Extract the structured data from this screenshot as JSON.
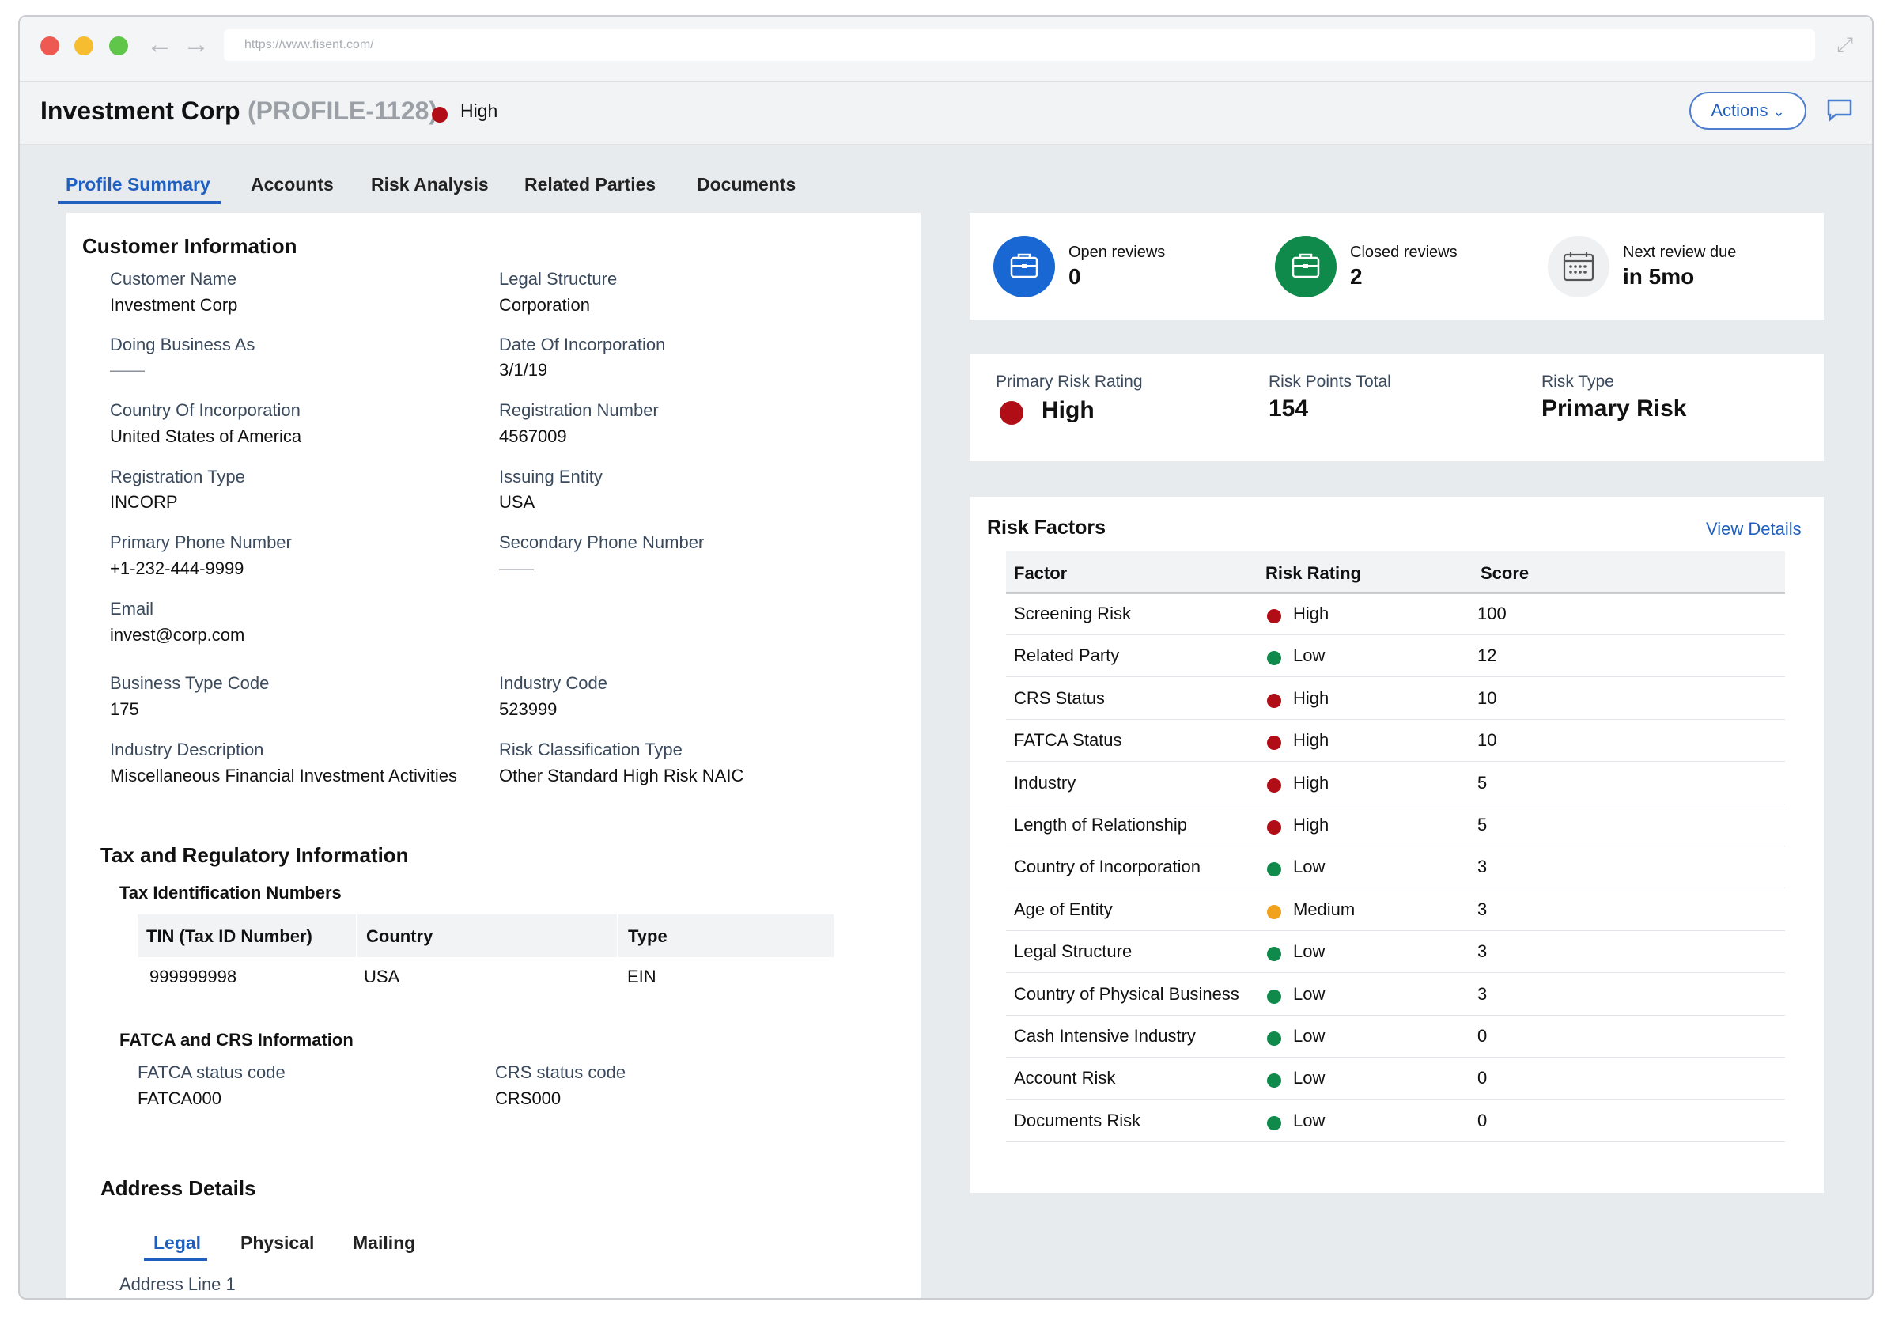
{
  "browser": {
    "url": "https://www.fisent.com/"
  },
  "header": {
    "title": "Investment Corp",
    "profile_id": "(PROFILE-1128)",
    "risk_label": "High",
    "risk_color": "#b00d16",
    "actions_label": "Actions"
  },
  "tabs": [
    "Profile Summary",
    "Accounts",
    "Risk Analysis",
    "Related Parties",
    "Documents"
  ],
  "customer_info": {
    "title": "Customer Information",
    "fields": [
      {
        "label": "Customer Name",
        "value": "Investment Corp"
      },
      {
        "label": "Legal Structure",
        "value": "Corporation"
      },
      {
        "label": "Doing Business As",
        "value": "——"
      },
      {
        "label": "Date Of Incorporation",
        "value": "3/1/19"
      },
      {
        "label": "Country Of Incorporation",
        "value": "United States of America"
      },
      {
        "label": "Registration Number",
        "value": "4567009"
      },
      {
        "label": "Registration Type",
        "value": "INCORP"
      },
      {
        "label": "Issuing Entity",
        "value": "USA"
      },
      {
        "label": "Primary Phone Number",
        "value": "+1-232-444-9999"
      },
      {
        "label": "Secondary Phone Number",
        "value": "——"
      },
      {
        "label": "Email",
        "value": "invest@corp.com"
      },
      {
        "label": "Business Type Code",
        "value": "175"
      },
      {
        "label": "Industry Code",
        "value": "523999"
      },
      {
        "label": "Industry Description",
        "value": "Miscellaneous Financial Investment Activities"
      },
      {
        "label": "Risk Classification Type",
        "value": "Other Standard High Risk NAIC"
      }
    ]
  },
  "tax": {
    "title": "Tax and Regulatory Information",
    "tin_title": "Tax Identification Numbers",
    "tin_headers": [
      "TIN (Tax ID Number)",
      "Country",
      "Type"
    ],
    "tin_rows": [
      [
        "999999998",
        "USA",
        "EIN"
      ]
    ],
    "fatca_title": "FATCA and CRS Information",
    "fatca_label": "FATCA status code",
    "fatca_value": "FATCA000",
    "crs_label": "CRS status code",
    "crs_value": "CRS000"
  },
  "address": {
    "title": "Address Details",
    "tabs": [
      "Legal",
      "Physical",
      "Mailing"
    ],
    "first_label": "Address Line 1"
  },
  "stats": [
    {
      "label": "Open reviews",
      "value": "0",
      "icon": "briefcase-icon",
      "color": "#1967d2"
    },
    {
      "label": "Closed reviews",
      "value": "2",
      "icon": "briefcase-icon",
      "color": "#0f8a4a"
    },
    {
      "label": "Next review due",
      "value": "in 5mo",
      "icon": "calendar-icon",
      "color": "#eef0f2"
    }
  ],
  "rating": {
    "primary_label": "Primary Risk Rating",
    "primary_value": "High",
    "points_label": "Risk Points Total",
    "points_value": "154",
    "type_label": "Risk Type",
    "type_value": "Primary Risk"
  },
  "risk_factors": {
    "title": "Risk Factors",
    "view_label": "View Details",
    "headers": [
      "Factor",
      "Risk Rating",
      "Score"
    ],
    "rows": [
      {
        "factor": "Screening Risk",
        "rating": "High",
        "score": "100"
      },
      {
        "factor": "Related Party",
        "rating": "Low",
        "score": "12"
      },
      {
        "factor": "CRS Status",
        "rating": "High",
        "score": "10"
      },
      {
        "factor": "FATCA Status",
        "rating": "High",
        "score": "10"
      },
      {
        "factor": "Industry",
        "rating": "High",
        "score": "5"
      },
      {
        "factor": "Length of Relationship",
        "rating": "High",
        "score": "5"
      },
      {
        "factor": "Country of Incorporation",
        "rating": "Low",
        "score": "3"
      },
      {
        "factor": "Age of Entity",
        "rating": "Medium",
        "score": "3"
      },
      {
        "factor": "Legal Structure",
        "rating": "Low",
        "score": "3"
      },
      {
        "factor": "Country of Physical Business",
        "rating": "Low",
        "score": "3"
      },
      {
        "factor": "Cash Intensive Industry",
        "rating": "Low",
        "score": "0"
      },
      {
        "factor": "Account Risk",
        "rating": "Low",
        "score": "0"
      },
      {
        "factor": "Documents Risk",
        "rating": "Low",
        "score": "0"
      }
    ],
    "rating_colors": {
      "High": "#b00d16",
      "Low": "#0f8a4a",
      "Medium": "#f0a21c"
    }
  }
}
